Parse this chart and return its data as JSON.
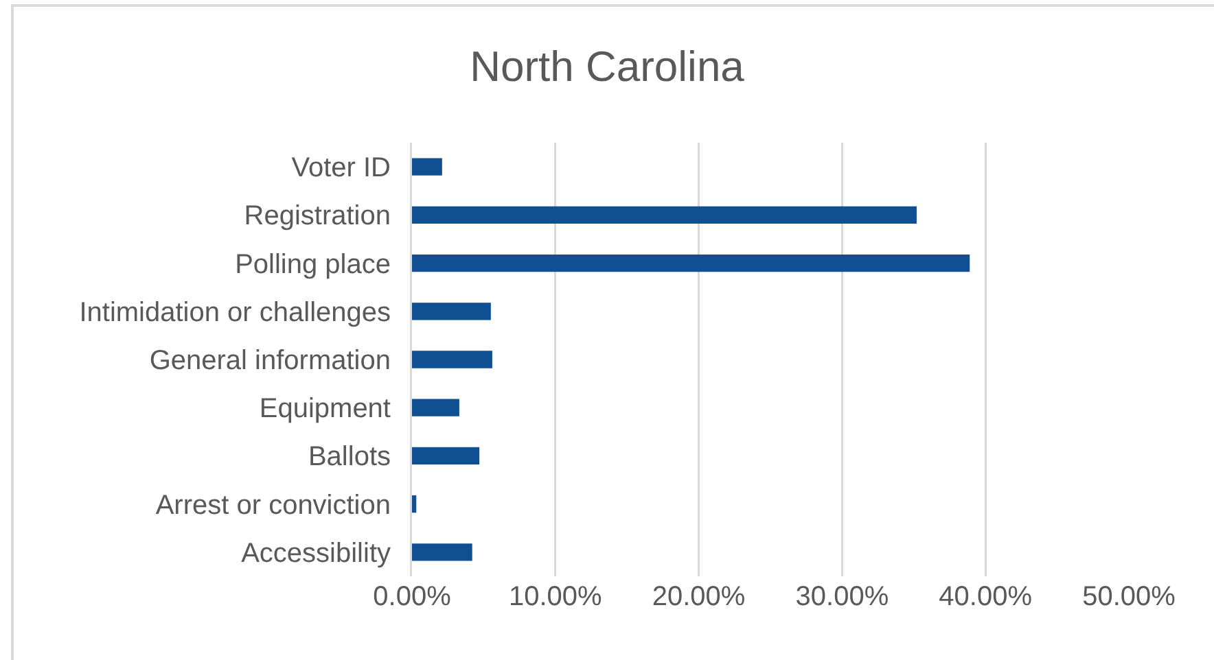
{
  "chart_data": {
    "type": "bar",
    "orientation": "horizontal",
    "title": "North Carolina",
    "categories": [
      "Voter ID",
      "Registration",
      "Polling place",
      "Intimidation or challenges",
      "General information",
      "Equipment",
      "Ballots",
      "Arrest or conviction",
      "Accessibility"
    ],
    "values": [
      2.1,
      35.2,
      38.9,
      5.5,
      5.6,
      3.3,
      4.7,
      0.3,
      4.2
    ],
    "color": "#0f4f92",
    "xlim": [
      0,
      50
    ],
    "xticks": [
      {
        "value": 0,
        "label": "0.00%"
      },
      {
        "value": 10,
        "label": "10.00%"
      },
      {
        "value": 20,
        "label": "20.00%"
      },
      {
        "value": 30,
        "label": "30.00%"
      },
      {
        "value": 40,
        "label": "40.00%"
      },
      {
        "value": 50,
        "label": "50.00%"
      }
    ],
    "grid": "x"
  }
}
